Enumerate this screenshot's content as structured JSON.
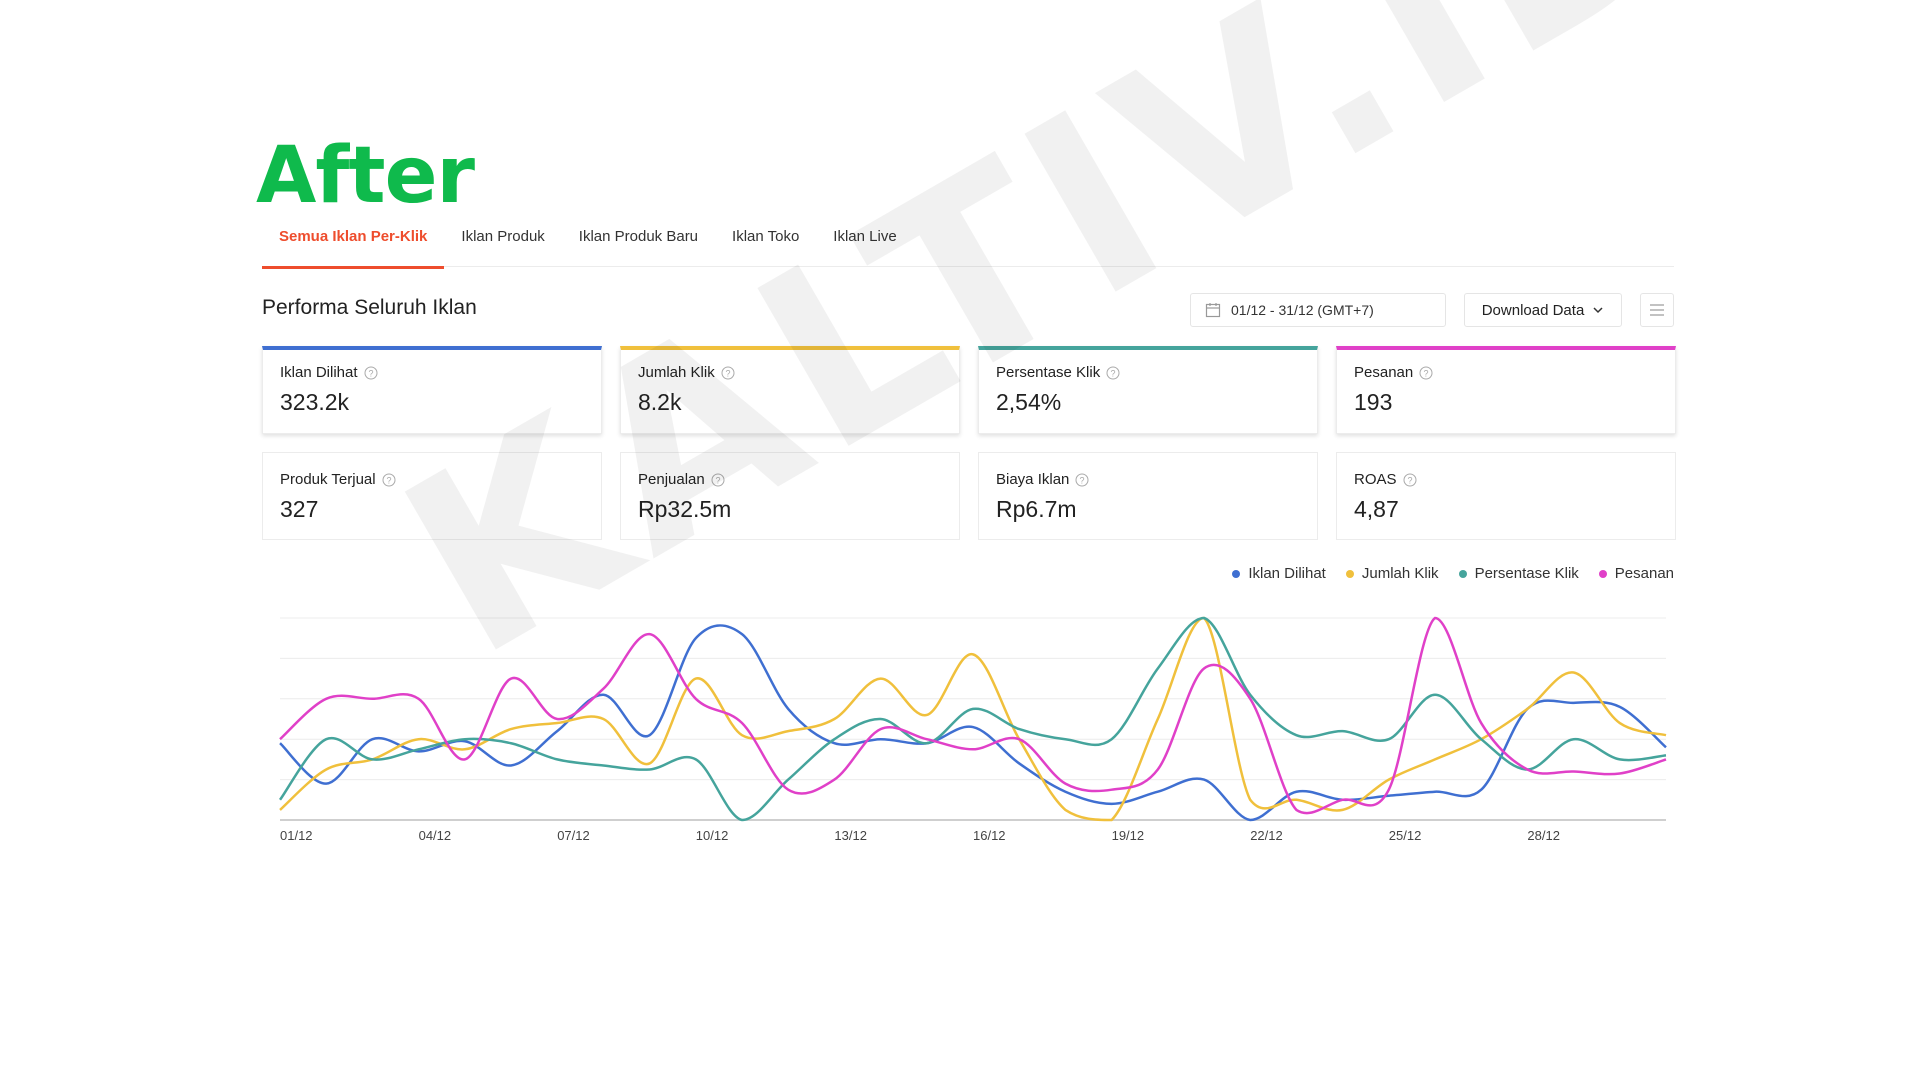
{
  "banner": {
    "title": "After"
  },
  "tabs": [
    {
      "label": "Semua Iklan Per-Klik",
      "active": true
    },
    {
      "label": "Iklan Produk",
      "active": false
    },
    {
      "label": "Iklan Produk Baru",
      "active": false
    },
    {
      "label": "Iklan Toko",
      "active": false
    },
    {
      "label": "Iklan Live",
      "active": false
    }
  ],
  "section": {
    "title": "Performa Seluruh Iklan",
    "date_range": "01/12 - 31/12 (GMT+7)",
    "download_label": "Download Data",
    "menu_icon": "hamburger-icon"
  },
  "metrics": [
    {
      "label": "Iklan Dilihat",
      "value": "323.2k",
      "color": "#3f6fd1"
    },
    {
      "label": "Jumlah Klik",
      "value": "8.2k",
      "color": "#f0c03c"
    },
    {
      "label": "Persentase Klik",
      "value": "2,54%",
      "color": "#45a49c"
    },
    {
      "label": "Pesanan",
      "value": "193",
      "color": "#e040c8"
    },
    {
      "label": "Produk Terjual",
      "value": "327"
    },
    {
      "label": "Penjualan",
      "value": "Rp32.5m"
    },
    {
      "label": "Biaya Iklan",
      "value": "Rp6.7m"
    },
    {
      "label": "ROAS",
      "value": "4,87"
    }
  ],
  "watermark": "KALTIV.ID",
  "chart_data": {
    "type": "line",
    "x": [
      "01/12",
      "02/12",
      "03/12",
      "04/12",
      "05/12",
      "06/12",
      "07/12",
      "08/12",
      "09/12",
      "10/12",
      "11/12",
      "12/12",
      "13/12",
      "14/12",
      "15/12",
      "16/12",
      "17/12",
      "18/12",
      "19/12",
      "20/12",
      "21/12",
      "22/12",
      "23/12",
      "24/12",
      "25/12",
      "26/12",
      "27/12",
      "28/12",
      "29/12",
      "30/12",
      "31/12"
    ],
    "x_tick_labels": [
      "01/12",
      "04/12",
      "07/12",
      "10/12",
      "13/12",
      "16/12",
      "19/12",
      "22/12",
      "25/12",
      "28/12"
    ],
    "y_range": [
      0,
      100
    ],
    "y_labels_shown": false,
    "grid": true,
    "legend_position": "top-right",
    "series": [
      {
        "name": "Iklan Dilihat",
        "color": "#3f6fd1",
        "values": [
          38,
          18,
          40,
          34,
          39,
          27,
          44,
          62,
          42,
          90,
          92,
          55,
          38,
          40,
          38,
          46,
          28,
          14,
          8,
          14,
          20,
          0,
          14,
          10,
          12,
          14,
          15,
          55,
          58,
          56,
          36
        ]
      },
      {
        "name": "Jumlah Klik",
        "color": "#f0c03c",
        "values": [
          5,
          25,
          30,
          40,
          35,
          45,
          48,
          50,
          28,
          70,
          42,
          44,
          50,
          70,
          52,
          82,
          40,
          5,
          0,
          50,
          100,
          10,
          10,
          5,
          20,
          30,
          40,
          55,
          73,
          48,
          42
        ]
      },
      {
        "name": "Persentase Klik",
        "color": "#45a49c",
        "values": [
          10,
          40,
          30,
          35,
          40,
          38,
          30,
          27,
          25,
          30,
          0,
          20,
          40,
          50,
          38,
          55,
          45,
          40,
          40,
          75,
          100,
          62,
          42,
          44,
          40,
          62,
          40,
          25,
          40,
          30,
          32
        ]
      },
      {
        "name": "Pesanan",
        "color": "#e040c8",
        "values": [
          40,
          60,
          60,
          60,
          30,
          70,
          50,
          65,
          92,
          60,
          48,
          15,
          20,
          45,
          40,
          35,
          40,
          18,
          15,
          25,
          75,
          60,
          5,
          10,
          15,
          100,
          48,
          25,
          24,
          23,
          30
        ]
      }
    ]
  }
}
